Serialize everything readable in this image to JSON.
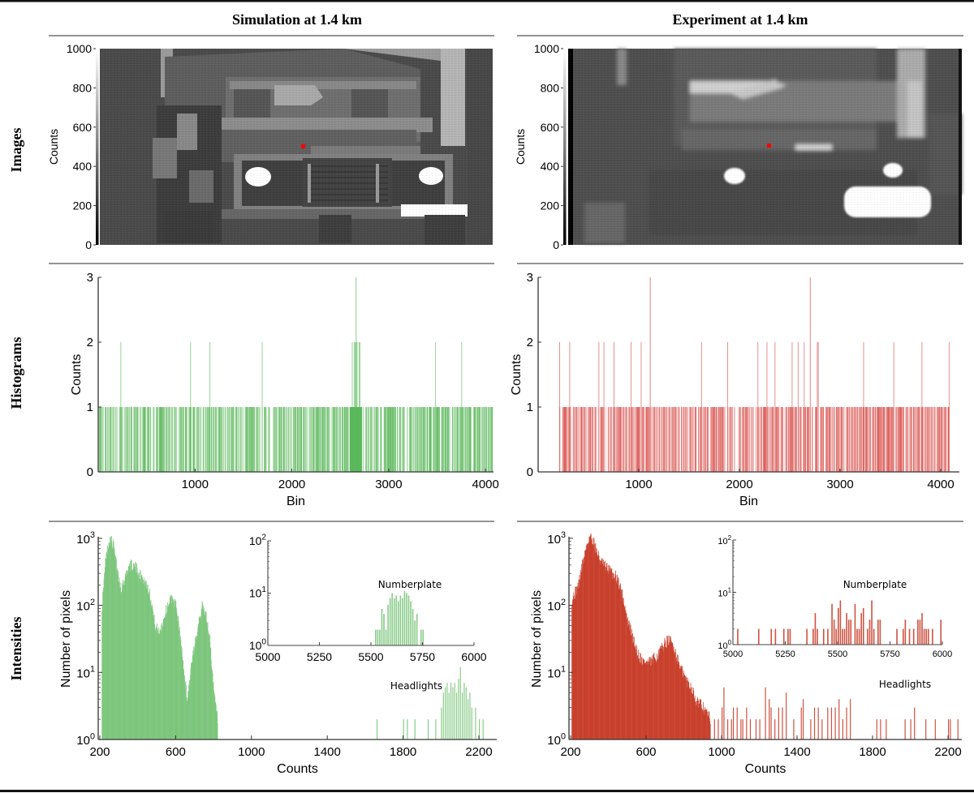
{
  "columns": [
    {
      "title": "Simulation at 1.4 km",
      "accent": "#6dbf6d"
    },
    {
      "title": "Experiment at 1.4 km",
      "accent": "#c83c2c"
    }
  ],
  "rows": [
    {
      "label": "Images"
    },
    {
      "label": "Histograms"
    },
    {
      "label": "Intensities"
    }
  ],
  "annotations": {
    "numberplate": "Numberplate",
    "headlights": "Headlights"
  },
  "chart_data": [
    {
      "panel": "simulation-image",
      "type": "heatmap",
      "title": "Simulation at 1.4 km",
      "colorbar_label": "Counts",
      "colorbar_ticks": [
        0,
        200,
        400,
        600,
        800,
        1000
      ],
      "colorbar_range": [
        0,
        1000
      ],
      "colormap": "gray",
      "marker": {
        "color": "#ff0000",
        "description": "red pixel marker above grille"
      }
    },
    {
      "panel": "experiment-image",
      "type": "heatmap",
      "title": "Experiment at 1.4 km",
      "colorbar_label": "Counts",
      "colorbar_ticks": [
        0,
        200,
        400,
        600,
        800,
        1000
      ],
      "colorbar_range": [
        0,
        1000
      ],
      "colormap": "gray",
      "marker": {
        "color": "#ff0000",
        "description": "red pixel marker center"
      }
    },
    {
      "panel": "simulation-histogram",
      "type": "bar",
      "xlabel": "Bin",
      "ylabel": "Counts",
      "xticks": [
        1000,
        2000,
        3000,
        4000
      ],
      "yticks": [
        0,
        1,
        2,
        3
      ],
      "xlim": [
        0,
        4096
      ],
      "ylim": [
        0,
        3
      ],
      "color": "#5cb85c",
      "peaks_count_2": [
        230,
        950,
        1150,
        1690,
        2620,
        2640,
        2650,
        2660,
        2670,
        2690,
        2700,
        3480,
        3750
      ],
      "peaks_count_3": [
        2660
      ],
      "dense_cluster": [
        2600,
        2720
      ],
      "baseline_count": 1
    },
    {
      "panel": "experiment-histogram",
      "type": "bar",
      "xlabel": "Bin",
      "ylabel": "Counts",
      "xticks": [
        1000,
        2000,
        3000,
        4000
      ],
      "yticks": [
        0,
        1,
        2,
        3
      ],
      "xlim": [
        0,
        4096
      ],
      "ylim": [
        0,
        3
      ],
      "color": "#d9534f",
      "peaks_count_2": [
        210,
        310,
        600,
        650,
        750,
        920,
        1020,
        1620,
        1880,
        2180,
        2270,
        2350,
        2520,
        2580,
        2640,
        2770,
        2780,
        3230,
        3530,
        3810,
        4080
      ],
      "peaks_count_3": [
        1110,
        2700
      ],
      "data_start": 200,
      "baseline_count": 1
    },
    {
      "panel": "simulation-intensities",
      "type": "bar",
      "xlabel": "Counts",
      "ylabel": "Number of pixels",
      "yscale": "log",
      "xticks": [
        200,
        600,
        1000,
        1400,
        1800,
        2200
      ],
      "yticks": [
        "10^0",
        "10^1",
        "10^2",
        "10^3"
      ],
      "xlim": [
        200,
        2280
      ],
      "ylim": [
        1,
        1000
      ],
      "color": "#7dc67d",
      "envelope": [
        [
          210,
          100
        ],
        [
          230,
          500
        ],
        [
          250,
          1000
        ],
        [
          270,
          800
        ],
        [
          290,
          350
        ],
        [
          310,
          180
        ],
        [
          330,
          250
        ],
        [
          350,
          380
        ],
        [
          370,
          400
        ],
        [
          390,
          360
        ],
        [
          420,
          260
        ],
        [
          450,
          200
        ],
        [
          470,
          120
        ],
        [
          490,
          50
        ],
        [
          510,
          40
        ],
        [
          530,
          55
        ],
        [
          560,
          110
        ],
        [
          580,
          130
        ],
        [
          600,
          100
        ],
        [
          620,
          40
        ],
        [
          640,
          12
        ],
        [
          660,
          4
        ],
        [
          680,
          12
        ],
        [
          700,
          25
        ],
        [
          720,
          60
        ],
        [
          740,
          100
        ],
        [
          760,
          70
        ],
        [
          780,
          30
        ],
        [
          800,
          5
        ],
        [
          820,
          2
        ]
      ],
      "headlights_bars": [
        [
          1660,
          2
        ],
        [
          1800,
          2
        ],
        [
          1820,
          2
        ],
        [
          1860,
          2
        ],
        [
          1930,
          2
        ],
        [
          1970,
          2
        ],
        [
          2000,
          3
        ],
        [
          2010,
          5
        ],
        [
          2020,
          6
        ],
        [
          2030,
          7
        ],
        [
          2040,
          5
        ],
        [
          2050,
          7
        ],
        [
          2060,
          6
        ],
        [
          2070,
          7
        ],
        [
          2080,
          5
        ],
        [
          2090,
          8
        ],
        [
          2100,
          12
        ],
        [
          2110,
          5
        ],
        [
          2120,
          7
        ],
        [
          2130,
          6
        ],
        [
          2140,
          4
        ],
        [
          2150,
          5
        ],
        [
          2160,
          3
        ],
        [
          2180,
          3
        ],
        [
          2200,
          2
        ],
        [
          2220,
          2
        ]
      ],
      "inset": {
        "xlim": [
          5000,
          6000
        ],
        "xticks": [
          5000,
          5250,
          5500,
          5750,
          6000
        ],
        "yticks": [
          "10^0",
          "10^1",
          "10^2"
        ],
        "ylim": [
          1,
          100
        ],
        "label": "Numberplate",
        "bars": [
          [
            5520,
            2
          ],
          [
            5530,
            2
          ],
          [
            5540,
            2
          ],
          [
            5550,
            5
          ],
          [
            5560,
            4
          ],
          [
            5570,
            2
          ],
          [
            5580,
            6
          ],
          [
            5590,
            8
          ],
          [
            5600,
            10
          ],
          [
            5610,
            8
          ],
          [
            5620,
            9
          ],
          [
            5630,
            7
          ],
          [
            5640,
            9
          ],
          [
            5650,
            8
          ],
          [
            5660,
            11
          ],
          [
            5670,
            10
          ],
          [
            5680,
            9
          ],
          [
            5690,
            7
          ],
          [
            5700,
            5
          ],
          [
            5710,
            3
          ],
          [
            5720,
            4
          ],
          [
            5740,
            2
          ],
          [
            5750,
            2
          ]
        ]
      }
    },
    {
      "panel": "experiment-intensities",
      "type": "bar",
      "xlabel": "Counts",
      "ylabel": "Number of pixels",
      "yscale": "log",
      "xticks": [
        200,
        600,
        1000,
        1400,
        1800,
        2200
      ],
      "yticks": [
        "10^0",
        "10^1",
        "10^2",
        "10^3"
      ],
      "xlim": [
        200,
        2280
      ],
      "ylim": [
        1,
        1000
      ],
      "color": "#c8402c",
      "envelope": [
        [
          205,
          120
        ],
        [
          220,
          150
        ],
        [
          240,
          200
        ],
        [
          260,
          400
        ],
        [
          280,
          700
        ],
        [
          300,
          1100
        ],
        [
          320,
          900
        ],
        [
          340,
          600
        ],
        [
          360,
          450
        ],
        [
          380,
          380
        ],
        [
          400,
          350
        ],
        [
          420,
          300
        ],
        [
          440,
          270
        ],
        [
          460,
          200
        ],
        [
          480,
          120
        ],
        [
          500,
          60
        ],
        [
          520,
          40
        ],
        [
          540,
          25
        ],
        [
          560,
          18
        ],
        [
          580,
          15
        ],
        [
          600,
          14
        ],
        [
          620,
          14
        ],
        [
          640,
          16
        ],
        [
          660,
          18
        ],
        [
          680,
          22
        ],
        [
          700,
          28
        ],
        [
          720,
          30
        ],
        [
          740,
          26
        ],
        [
          760,
          18
        ],
        [
          780,
          12
        ],
        [
          800,
          9
        ],
        [
          820,
          7
        ],
        [
          840,
          6
        ],
        [
          860,
          4
        ],
        [
          880,
          3.5
        ],
        [
          900,
          3
        ],
        [
          920,
          2.5
        ],
        [
          940,
          2
        ]
      ],
      "tail_bars": [
        [
          960,
          2
        ],
        [
          980,
          2
        ],
        [
          1000,
          3
        ],
        [
          1010,
          6
        ],
        [
          1030,
          2
        ],
        [
          1050,
          2
        ],
        [
          1060,
          3
        ],
        [
          1080,
          3
        ],
        [
          1100,
          2
        ],
        [
          1110,
          2
        ],
        [
          1130,
          3
        ],
        [
          1150,
          2
        ],
        [
          1180,
          2
        ],
        [
          1200,
          2
        ],
        [
          1230,
          6
        ],
        [
          1250,
          4
        ],
        [
          1260,
          3
        ],
        [
          1280,
          2
        ],
        [
          1300,
          3
        ],
        [
          1320,
          3
        ],
        [
          1340,
          5
        ],
        [
          1380,
          2
        ],
        [
          1420,
          3
        ],
        [
          1430,
          4
        ],
        [
          1470,
          2
        ],
        [
          1490,
          3
        ],
        [
          1510,
          3
        ],
        [
          1530,
          2
        ],
        [
          1560,
          3
        ],
        [
          1580,
          3
        ],
        [
          1600,
          3
        ],
        [
          1620,
          4
        ],
        [
          1640,
          2
        ],
        [
          1660,
          3
        ],
        [
          1680,
          4
        ],
        [
          1820,
          2
        ],
        [
          1840,
          2
        ],
        [
          1870,
          2
        ],
        [
          1970,
          2
        ],
        [
          2000,
          2
        ],
        [
          2020,
          3
        ],
        [
          2080,
          2
        ],
        [
          2130,
          2
        ],
        [
          2200,
          2
        ],
        [
          2210,
          2
        ],
        [
          2250,
          2
        ]
      ],
      "inset": {
        "xlim": [
          5000,
          6000
        ],
        "xticks": [
          5000,
          5250,
          5500,
          5750,
          6000
        ],
        "yticks": [
          "10^0",
          "10^1",
          "10^2"
        ],
        "ylim": [
          1,
          100
        ],
        "label": "Numberplate",
        "bars": [
          [
            5020,
            2
          ],
          [
            5120,
            2
          ],
          [
            5180,
            2
          ],
          [
            5200,
            2
          ],
          [
            5240,
            2
          ],
          [
            5260,
            2
          ],
          [
            5270,
            2
          ],
          [
            5350,
            2
          ],
          [
            5380,
            2
          ],
          [
            5390,
            4
          ],
          [
            5400,
            2
          ],
          [
            5430,
            2
          ],
          [
            5450,
            2
          ],
          [
            5470,
            6
          ],
          [
            5480,
            3
          ],
          [
            5490,
            2
          ],
          [
            5500,
            5
          ],
          [
            5510,
            7
          ],
          [
            5520,
            2
          ],
          [
            5530,
            2
          ],
          [
            5540,
            4
          ],
          [
            5550,
            3
          ],
          [
            5560,
            3
          ],
          [
            5580,
            6
          ],
          [
            5590,
            2
          ],
          [
            5600,
            2
          ],
          [
            5610,
            4
          ],
          [
            5620,
            5
          ],
          [
            5640,
            2
          ],
          [
            5650,
            3
          ],
          [
            5660,
            7
          ],
          [
            5670,
            2
          ],
          [
            5690,
            3
          ],
          [
            5700,
            3
          ],
          [
            5780,
            2
          ],
          [
            5810,
            2
          ],
          [
            5820,
            3
          ],
          [
            5840,
            2
          ],
          [
            5860,
            2
          ],
          [
            5880,
            3
          ],
          [
            5890,
            3
          ],
          [
            5900,
            4
          ],
          [
            5910,
            2
          ],
          [
            5920,
            2
          ],
          [
            5930,
            2
          ],
          [
            5950,
            2
          ],
          [
            5990,
            3
          ]
        ]
      }
    }
  ]
}
